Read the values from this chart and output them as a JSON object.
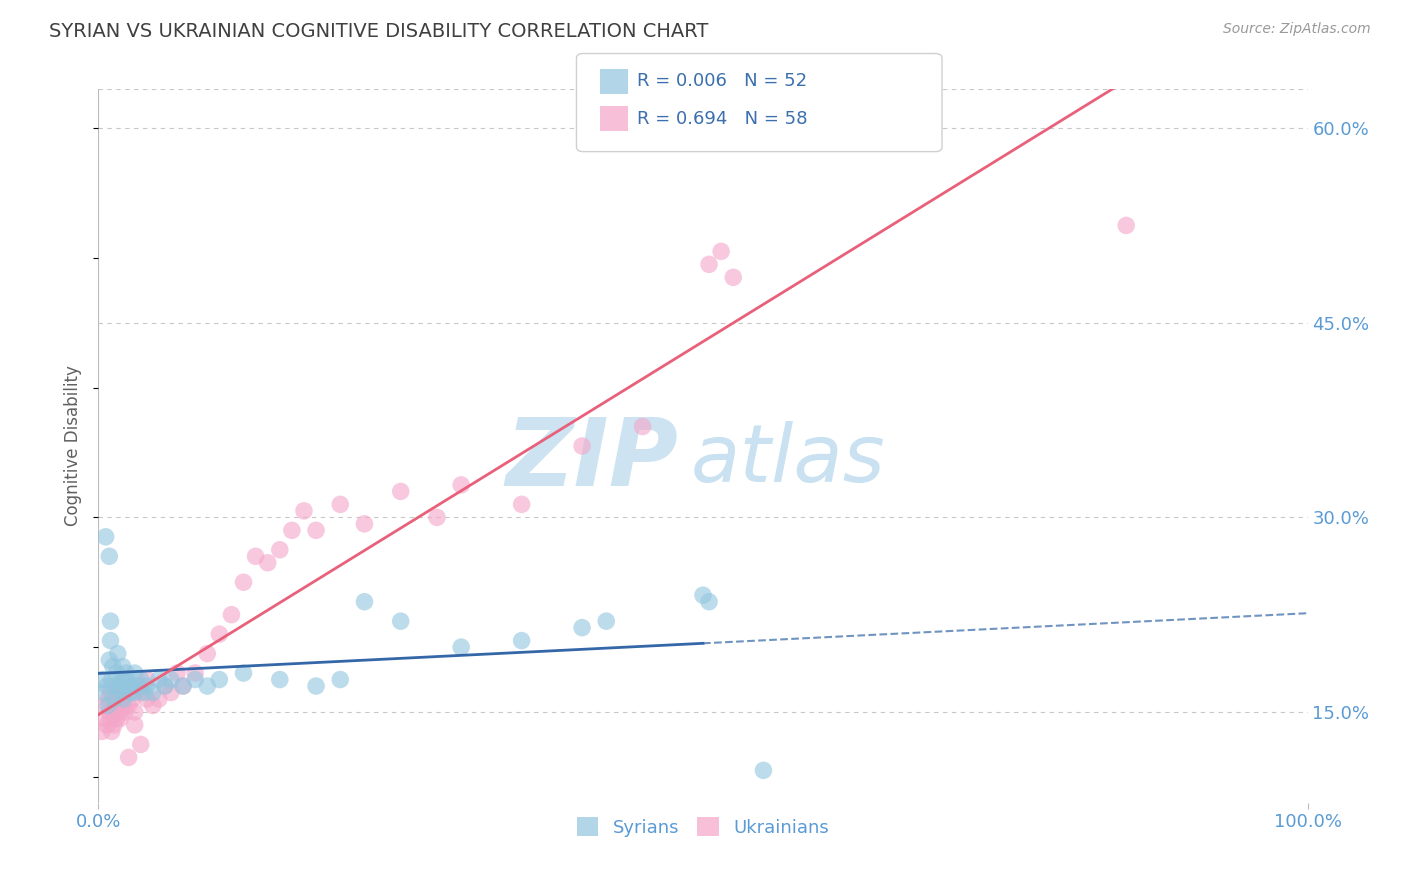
{
  "title": "SYRIAN VS UKRAINIAN COGNITIVE DISABILITY CORRELATION CHART",
  "source": "Source: ZipAtlas.com",
  "ylabel": "Cognitive Disability",
  "xlim": [
    0,
    100
  ],
  "ylim": [
    8,
    63
  ],
  "yticks": [
    15.0,
    30.0,
    45.0,
    60.0
  ],
  "ytick_labels": [
    "15.0%",
    "30.0%",
    "45.0%",
    "60.0%"
  ],
  "xtick_labels": [
    "0.0%",
    "100.0%"
  ],
  "syrian_color": "#92c5de",
  "ukrainian_color": "#f4a6c8",
  "syrian_R": 0.006,
  "syrian_N": 52,
  "ukrainian_R": 0.694,
  "ukrainian_N": 58,
  "background_color": "#ffffff",
  "grid_color": "#c8c8c8",
  "title_color": "#404040",
  "axis_label_color": "#606060",
  "tick_label_color": "#5b9bd5",
  "watermark_zip": "ZIP",
  "watermark_atlas": "atlas",
  "syrian_line_color": "#3467a8",
  "ukrainian_line_color": "#e8607a",
  "legend_value_color": "#3b6fad",
  "syrian_points": [
    [
      0.3,
      17.5
    ],
    [
      0.5,
      16.5
    ],
    [
      0.7,
      17.0
    ],
    [
      0.8,
      15.5
    ],
    [
      0.9,
      19.0
    ],
    [
      1.0,
      20.5
    ],
    [
      1.0,
      22.0
    ],
    [
      1.1,
      17.5
    ],
    [
      1.2,
      18.5
    ],
    [
      1.3,
      16.0
    ],
    [
      1.4,
      17.0
    ],
    [
      1.5,
      18.0
    ],
    [
      1.6,
      19.5
    ],
    [
      1.7,
      17.0
    ],
    [
      1.8,
      16.5
    ],
    [
      2.0,
      17.5
    ],
    [
      2.0,
      18.5
    ],
    [
      2.1,
      16.0
    ],
    [
      2.2,
      17.5
    ],
    [
      2.3,
      18.0
    ],
    [
      2.5,
      17.0
    ],
    [
      2.6,
      16.5
    ],
    [
      2.8,
      17.0
    ],
    [
      3.0,
      16.5
    ],
    [
      3.0,
      18.0
    ],
    [
      3.2,
      17.0
    ],
    [
      3.5,
      17.5
    ],
    [
      3.8,
      16.5
    ],
    [
      4.0,
      17.0
    ],
    [
      4.5,
      16.5
    ],
    [
      5.0,
      17.5
    ],
    [
      5.5,
      17.0
    ],
    [
      6.0,
      17.5
    ],
    [
      7.0,
      17.0
    ],
    [
      8.0,
      17.5
    ],
    [
      9.0,
      17.0
    ],
    [
      10.0,
      17.5
    ],
    [
      12.0,
      18.0
    ],
    [
      15.0,
      17.5
    ],
    [
      18.0,
      17.0
    ],
    [
      20.0,
      17.5
    ],
    [
      22.0,
      23.5
    ],
    [
      25.0,
      22.0
    ],
    [
      30.0,
      20.0
    ],
    [
      35.0,
      20.5
    ],
    [
      40.0,
      21.5
    ],
    [
      42.0,
      22.0
    ],
    [
      50.0,
      24.0
    ],
    [
      50.5,
      23.5
    ],
    [
      0.6,
      28.5
    ],
    [
      0.9,
      27.0
    ],
    [
      55.0,
      10.5
    ]
  ],
  "ukrainian_points": [
    [
      0.3,
      13.5
    ],
    [
      0.5,
      14.5
    ],
    [
      0.6,
      15.5
    ],
    [
      0.7,
      14.0
    ],
    [
      0.8,
      16.0
    ],
    [
      0.9,
      15.0
    ],
    [
      1.0,
      14.5
    ],
    [
      1.0,
      16.5
    ],
    [
      1.1,
      13.5
    ],
    [
      1.2,
      15.0
    ],
    [
      1.3,
      14.0
    ],
    [
      1.4,
      15.5
    ],
    [
      1.5,
      14.5
    ],
    [
      1.6,
      16.0
    ],
    [
      1.7,
      15.0
    ],
    [
      1.8,
      14.5
    ],
    [
      2.0,
      15.5
    ],
    [
      2.0,
      16.5
    ],
    [
      2.2,
      15.0
    ],
    [
      2.5,
      15.5
    ],
    [
      2.8,
      16.0
    ],
    [
      3.0,
      14.0
    ],
    [
      3.0,
      15.0
    ],
    [
      3.5,
      16.5
    ],
    [
      3.5,
      17.0
    ],
    [
      4.0,
      16.0
    ],
    [
      4.0,
      17.5
    ],
    [
      4.5,
      15.5
    ],
    [
      5.0,
      16.0
    ],
    [
      5.5,
      17.0
    ],
    [
      6.0,
      16.5
    ],
    [
      6.5,
      18.0
    ],
    [
      7.0,
      17.0
    ],
    [
      8.0,
      18.0
    ],
    [
      9.0,
      19.5
    ],
    [
      10.0,
      21.0
    ],
    [
      11.0,
      22.5
    ],
    [
      12.0,
      25.0
    ],
    [
      13.0,
      27.0
    ],
    [
      14.0,
      26.5
    ],
    [
      15.0,
      27.5
    ],
    [
      16.0,
      29.0
    ],
    [
      17.0,
      30.5
    ],
    [
      18.0,
      29.0
    ],
    [
      20.0,
      31.0
    ],
    [
      22.0,
      29.5
    ],
    [
      25.0,
      32.0
    ],
    [
      28.0,
      30.0
    ],
    [
      30.0,
      32.5
    ],
    [
      35.0,
      31.0
    ],
    [
      40.0,
      35.5
    ],
    [
      45.0,
      37.0
    ],
    [
      50.5,
      49.5
    ],
    [
      51.5,
      50.5
    ],
    [
      52.5,
      48.5
    ],
    [
      85.0,
      52.5
    ],
    [
      3.5,
      12.5
    ],
    [
      2.5,
      11.5
    ]
  ]
}
